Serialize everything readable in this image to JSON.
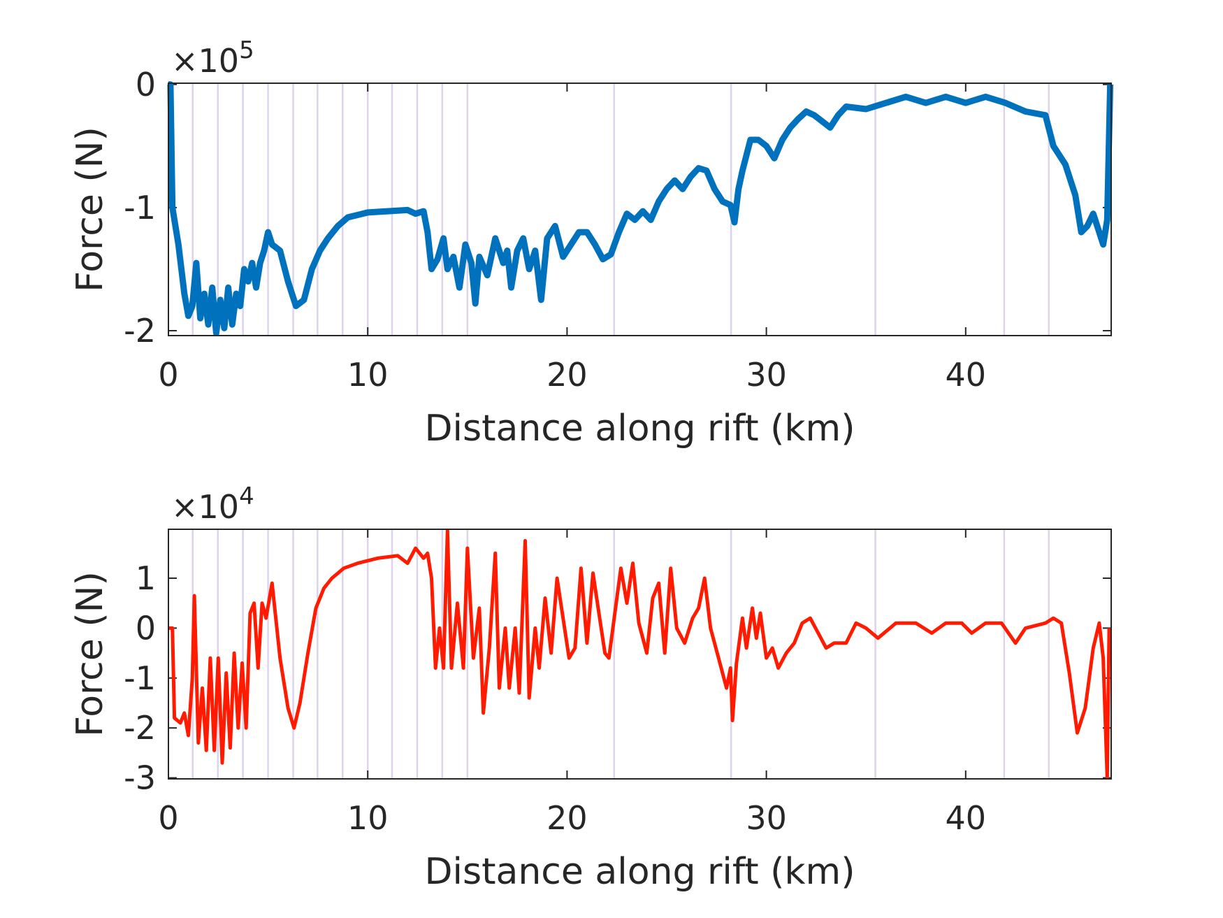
{
  "chart_data": [
    {
      "type": "line",
      "xlabel": "Distance along rift (km)",
      "ylabel": "Force (N)",
      "multiplier": {
        "base": "×10",
        "exponent": "5"
      },
      "xlim": [
        0,
        47.3
      ],
      "ylim": [
        -2.04,
        0.01
      ],
      "xticks": [
        0,
        10,
        20,
        30,
        40
      ],
      "yticks": [
        0,
        -1,
        -2
      ],
      "color": "#0072bd",
      "vline_color": "#ddd3ec",
      "vlines": [
        1.22,
        2.48,
        3.74,
        5.0,
        6.26,
        7.48,
        8.74,
        10.0,
        11.22,
        12.48,
        13.74,
        15.0,
        22.36,
        28.23,
        35.47,
        41.93,
        44.17
      ],
      "x": [
        0,
        0.1,
        0.2,
        0.5,
        0.8,
        1.0,
        1.2,
        1.4,
        1.6,
        1.8,
        2.0,
        2.2,
        2.4,
        2.6,
        2.8,
        3.0,
        3.2,
        3.4,
        3.6,
        3.8,
        4.0,
        4.2,
        4.4,
        4.6,
        4.8,
        5.0,
        5.2,
        5.6,
        6.0,
        6.4,
        6.8,
        7.2,
        7.6,
        8.0,
        8.5,
        9.0,
        10,
        11,
        12,
        12.4,
        12.8,
        13.0,
        13.2,
        13.5,
        13.8,
        14.0,
        14.3,
        14.6,
        14.9,
        15.2,
        15.4,
        15.6,
        16.0,
        16.4,
        16.8,
        17.0,
        17.2,
        17.5,
        17.8,
        18.1,
        18.4,
        18.7,
        19.0,
        19.4,
        19.8,
        20.2,
        20.6,
        21.0,
        21.4,
        21.8,
        22.2,
        22.6,
        23.0,
        23.4,
        23.8,
        24.2,
        24.6,
        25.0,
        25.4,
        25.8,
        26.2,
        26.6,
        27.0,
        27.4,
        27.8,
        28.2,
        28.4,
        28.6,
        28.8,
        29.2,
        29.6,
        30.0,
        30.4,
        30.8,
        31.2,
        31.6,
        32.0,
        32.4,
        32.8,
        33.2,
        33.6,
        34.0,
        35.0,
        36.0,
        37.0,
        38.0,
        39.0,
        40.0,
        41.0,
        42.0,
        43.0,
        44.0,
        44.4,
        45.0,
        45.5,
        45.8,
        46.1,
        46.4,
        46.7,
        46.9,
        47.1,
        47.25
      ],
      "values": [
        0,
        0,
        -1.0,
        -1.3,
        -1.7,
        -1.88,
        -1.8,
        -1.45,
        -1.9,
        -1.7,
        -1.95,
        -1.65,
        -2.02,
        -1.75,
        -1.98,
        -1.65,
        -1.95,
        -1.7,
        -1.8,
        -1.5,
        -1.6,
        -1.45,
        -1.65,
        -1.45,
        -1.35,
        -1.2,
        -1.3,
        -1.35,
        -1.6,
        -1.8,
        -1.75,
        -1.5,
        -1.35,
        -1.25,
        -1.15,
        -1.08,
        -1.04,
        -1.03,
        -1.02,
        -1.05,
        -1.03,
        -1.2,
        -1.5,
        -1.42,
        -1.25,
        -1.5,
        -1.4,
        -1.65,
        -1.3,
        -1.45,
        -1.78,
        -1.4,
        -1.55,
        -1.25,
        -1.45,
        -1.35,
        -1.65,
        -1.35,
        -1.25,
        -1.5,
        -1.35,
        -1.75,
        -1.25,
        -1.15,
        -1.4,
        -1.3,
        -1.2,
        -1.2,
        -1.3,
        -1.42,
        -1.38,
        -1.2,
        -1.05,
        -1.1,
        -1.03,
        -1.1,
        -0.95,
        -0.85,
        -0.78,
        -0.85,
        -0.75,
        -0.68,
        -0.7,
        -0.85,
        -0.95,
        -0.98,
        -1.12,
        -0.85,
        -0.7,
        -0.45,
        -0.45,
        -0.5,
        -0.6,
        -0.45,
        -0.35,
        -0.28,
        -0.22,
        -0.25,
        -0.3,
        -0.35,
        -0.25,
        -0.18,
        -0.2,
        -0.15,
        -0.1,
        -0.15,
        -0.1,
        -0.15,
        -0.1,
        -0.15,
        -0.22,
        -0.25,
        -0.5,
        -0.65,
        -0.9,
        -1.2,
        -1.15,
        -1.05,
        -1.2,
        -1.3,
        -1.1,
        0
      ]
    },
    {
      "type": "line",
      "xlabel": "Distance along rift (km)",
      "ylabel": "Force (N)",
      "multiplier": {
        "base": "×10",
        "exponent": "4"
      },
      "xlim": [
        0,
        47.3
      ],
      "ylim": [
        -3.02,
        1.98
      ],
      "xticks": [
        0,
        10,
        20,
        30,
        40
      ],
      "yticks": [
        1,
        0,
        -1,
        -2,
        -3
      ],
      "color": "#ff1a00",
      "vline_color": "#ddd3ec",
      "vlines": [
        1.22,
        2.48,
        3.74,
        5.0,
        6.26,
        7.48,
        8.74,
        10.0,
        11.22,
        12.48,
        13.74,
        15.0,
        22.36,
        28.23,
        35.47,
        41.93,
        44.17
      ],
      "x": [
        0,
        0.2,
        0.3,
        0.6,
        0.8,
        1.0,
        1.2,
        1.3,
        1.5,
        1.7,
        1.9,
        2.1,
        2.3,
        2.5,
        2.7,
        2.9,
        3.1,
        3.3,
        3.5,
        3.7,
        3.9,
        4.1,
        4.3,
        4.5,
        4.7,
        4.9,
        5.2,
        5.6,
        6.0,
        6.3,
        6.6,
        7.0,
        7.4,
        7.8,
        8.2,
        8.8,
        9.5,
        10.5,
        11.5,
        12.0,
        12.4,
        12.8,
        13.0,
        13.2,
        13.4,
        13.6,
        13.8,
        14.0,
        14.2,
        14.5,
        14.8,
        15.0,
        15.3,
        15.6,
        15.8,
        16.1,
        16.4,
        16.6,
        16.9,
        17.1,
        17.4,
        17.6,
        17.9,
        18.1,
        18.4,
        18.6,
        18.9,
        19.2,
        19.5,
        19.8,
        20.1,
        20.4,
        20.7,
        21.0,
        21.3,
        21.6,
        21.9,
        22.1,
        22.4,
        22.7,
        23.0,
        23.3,
        23.6,
        24.0,
        24.3,
        24.6,
        24.9,
        25.2,
        25.5,
        25.9,
        26.3,
        26.6,
        26.9,
        27.2,
        27.6,
        28.0,
        28.2,
        28.3,
        28.5,
        28.8,
        29.0,
        29.3,
        29.5,
        29.7,
        30.0,
        30.3,
        30.6,
        31.0,
        31.4,
        31.8,
        32.2,
        32.6,
        33.0,
        33.4,
        34.0,
        34.5,
        35.0,
        35.6,
        36.5,
        37.5,
        38.3,
        39.0,
        39.8,
        40.3,
        41.0,
        41.8,
        42.5,
        43.0,
        44.0,
        44.4,
        44.8,
        45.2,
        45.6,
        46.0,
        46.4,
        46.7,
        46.9,
        47.1,
        47.2
      ],
      "values": [
        0,
        0,
        -1.8,
        -1.9,
        -1.7,
        -2.15,
        -1,
        0.65,
        -2.3,
        -1.2,
        -2.45,
        -0.6,
        -2.45,
        -0.6,
        -2.7,
        -0.9,
        -2.4,
        -0.5,
        -2.0,
        -0.7,
        -2.0,
        0.3,
        0.5,
        -0.8,
        0.5,
        0.2,
        0.9,
        -0.6,
        -1.6,
        -2.0,
        -1.5,
        -0.5,
        0.4,
        0.8,
        1.0,
        1.2,
        1.3,
        1.4,
        1.45,
        1.3,
        1.6,
        1.4,
        1.5,
        1.0,
        -0.8,
        0.0,
        -0.8,
        1.95,
        -0.8,
        0.5,
        -0.8,
        1.6,
        -0.6,
        0.4,
        -1.7,
        -0.4,
        1.5,
        -1.2,
        0.0,
        -1.2,
        0.0,
        -1.3,
        1.75,
        -1.4,
        0.0,
        -0.8,
        0.6,
        -0.5,
        1.0,
        0.2,
        -0.6,
        -0.4,
        1.2,
        -0.3,
        1.1,
        0.3,
        -0.5,
        -0.6,
        0.3,
        1.2,
        0.5,
        1.3,
        0.1,
        -0.5,
        0.6,
        0.9,
        -0.5,
        1.2,
        0.0,
        -0.3,
        0.2,
        0.4,
        1.0,
        0.0,
        -0.6,
        -1.2,
        -0.8,
        -1.85,
        -0.7,
        0.2,
        -0.4,
        0.4,
        -0.2,
        0.3,
        -0.6,
        -0.4,
        -0.8,
        -0.5,
        -0.3,
        0.1,
        0.2,
        -0.1,
        -0.4,
        -0.3,
        -0.3,
        0.1,
        0.0,
        -0.2,
        0.1,
        0.1,
        -0.1,
        0.1,
        0.1,
        -0.1,
        0.1,
        0.1,
        -0.3,
        0.0,
        0.1,
        0.2,
        0.1,
        -0.9,
        -2.1,
        -1.6,
        -0.4,
        0.1,
        -0.6,
        -3.0,
        0.0
      ]
    }
  ]
}
